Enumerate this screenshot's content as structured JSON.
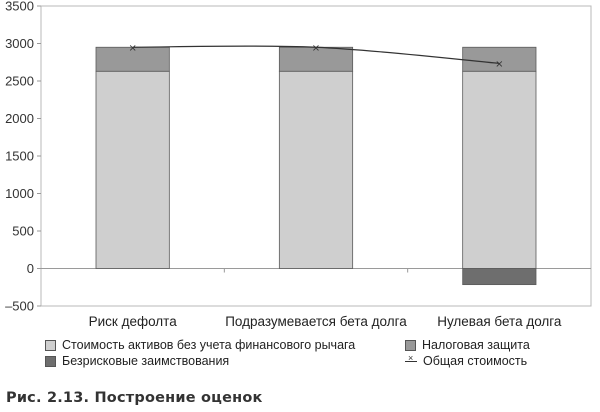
{
  "chart_data": {
    "type": "bar",
    "stacked": true,
    "categories": [
      "Риск дефолта",
      "Подразумевается бета долга",
      "Нулевая бета долга"
    ],
    "ylim": [
      -500,
      3500
    ],
    "yticks": [
      -500,
      0,
      500,
      1000,
      1500,
      2000,
      2500,
      3000,
      3500
    ],
    "ytick_labels": [
      "–500",
      "0",
      "500",
      "1000",
      "1500",
      "2000",
      "2500",
      "3000",
      "3500"
    ],
    "grid": false,
    "legend_position": "bottom",
    "series": [
      {
        "name": "Стоимость активов без учета финансового рычага",
        "kind": "bar",
        "color": "#cfcfcf",
        "values": [
          2630,
          2630,
          2630
        ]
      },
      {
        "name": "Налоговая защита",
        "kind": "bar",
        "color": "#999999",
        "values": [
          320,
          320,
          320
        ]
      },
      {
        "name": "Безрисковые заимствования",
        "kind": "bar",
        "color": "#6e6e6e",
        "values": [
          0,
          0,
          -215
        ]
      },
      {
        "name": "Общая стоимость",
        "kind": "line",
        "color": "#333333",
        "values": [
          2950,
          2950,
          2735
        ]
      }
    ]
  },
  "caption": "Рис. 2.13. Построение оценок"
}
